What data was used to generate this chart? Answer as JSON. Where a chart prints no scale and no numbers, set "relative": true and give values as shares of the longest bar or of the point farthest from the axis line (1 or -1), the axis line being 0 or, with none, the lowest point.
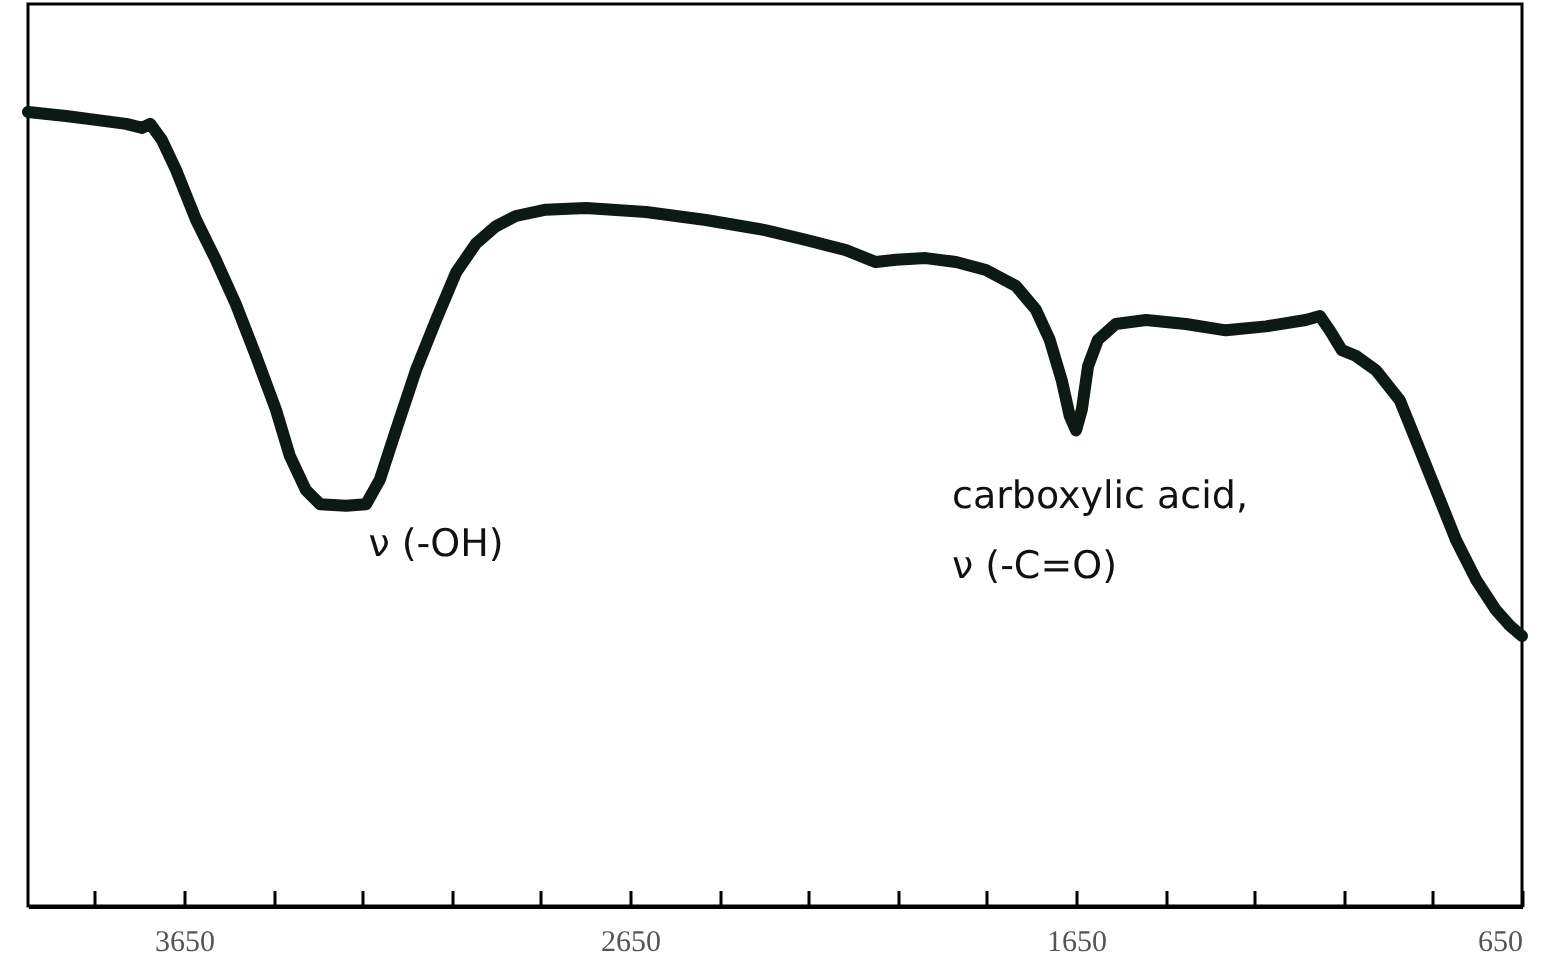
{
  "chart_data": {
    "type": "line",
    "relative": true,
    "xlim": [
      4000,
      650
    ],
    "xticks": [
      {
        "value": 3850,
        "label": null
      },
      3650,
      {
        "value": 3450,
        "label": null
      },
      {
        "value": 3250,
        "label": null
      },
      {
        "value": 3050,
        "label": null
      },
      {
        "value": 2850,
        "label": null
      },
      2650,
      {
        "value": 2450,
        "label": null
      },
      {
        "value": 2250,
        "label": null
      },
      {
        "value": 2050,
        "label": null
      },
      {
        "value": 1850,
        "label": null
      },
      1650,
      {
        "value": 1450,
        "label": null
      },
      {
        "value": 1250,
        "label": null
      },
      {
        "value": 1050,
        "label": null
      },
      {
        "value": 850,
        "label": null
      },
      650
    ],
    "tick_labels": "x",
    "grid": false,
    "line_style": "solid",
    "series": [
      {
        "color": "#0d1a14",
        "x": [
          4000,
          3915,
          3848,
          3780,
          3744,
          3726,
          3700,
          3668,
          3623,
          3579,
          3534,
          3489,
          3444,
          3413,
          3377,
          3345,
          3287,
          3242,
          3211,
          3175,
          3130,
          3085,
          3040,
          2996,
          2951,
          2906,
          2839,
          2749,
          2614,
          2480,
          2345,
          2256,
          2166,
          2099,
          2054,
          1987,
          1919,
          1852,
          1785,
          1740,
          1709,
          1682,
          1664,
          1650,
          1637,
          1623,
          1601,
          1561,
          1493,
          1404,
          1314,
          1224,
          1135,
          1103,
          1081,
          1054,
          1023,
          978,
          924,
          888,
          843,
          798,
          753,
          709,
          677,
          650
        ],
        "values": [
          1,
          0.995,
          0.99,
          0.985,
          0.98,
          0.985,
          0.965,
          0.927,
          0.864,
          0.814,
          0.758,
          0.693,
          0.625,
          0.567,
          0.524,
          0.506,
          0.504,
          0.506,
          0.537,
          0.599,
          0.675,
          0.738,
          0.798,
          0.834,
          0.856,
          0.869,
          0.877,
          0.879,
          0.874,
          0.864,
          0.851,
          0.839,
          0.826,
          0.811,
          0.814,
          0.816,
          0.811,
          0.801,
          0.781,
          0.751,
          0.713,
          0.662,
          0.617,
          0.599,
          0.625,
          0.68,
          0.713,
          0.733,
          0.738,
          0.733,
          0.725,
          0.73,
          0.738,
          0.743,
          0.725,
          0.7,
          0.693,
          0.675,
          0.637,
          0.587,
          0.524,
          0.461,
          0.411,
          0.373,
          0.353,
          0.34
        ]
      }
    ],
    "annotations": [
      "ν (-OH)",
      "carboxylic acid,\nν (-C=O)"
    ]
  }
}
